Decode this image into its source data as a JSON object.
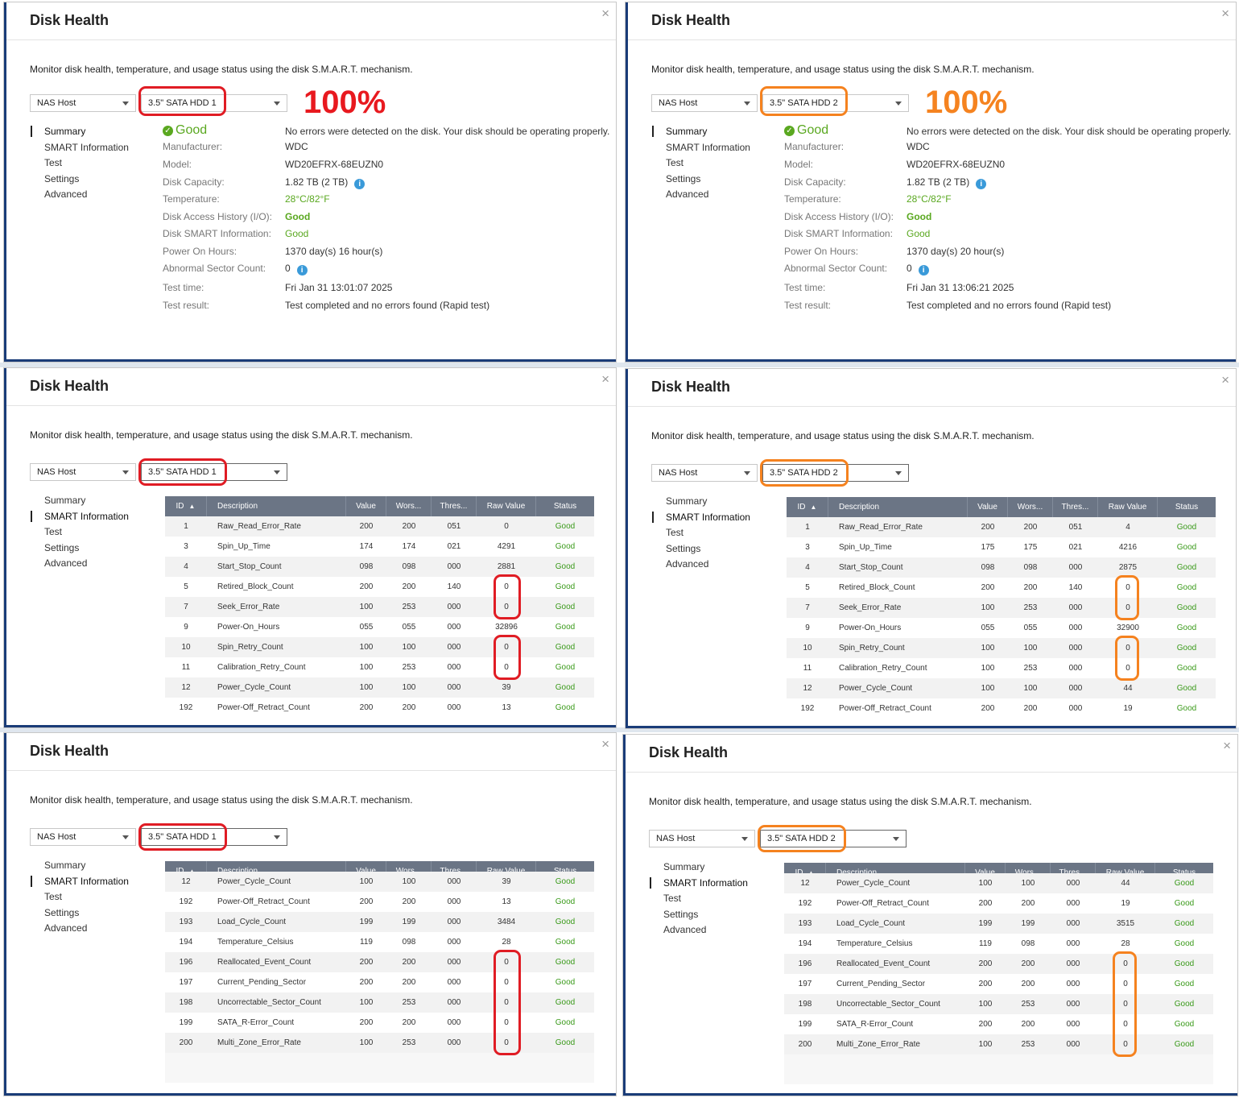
{
  "dialog_title": "Disk Health",
  "close_glyph": "×",
  "description": "Monitor disk health, temperature, and usage status using the disk S.M.A.R.T. mechanism.",
  "host_select": "NAS Host",
  "disks": {
    "hdd1": "3.5\" SATA HDD 1",
    "hdd2": "3.5\" SATA HDD 2"
  },
  "nav": [
    "Summary",
    "SMART Information",
    "Test",
    "Settings",
    "Advanced"
  ],
  "health_pct": "100%",
  "annotation_colors": {
    "hdd1": "#e01c24",
    "hdd2": "#f5821f"
  },
  "summary_labels": {
    "status": "Good",
    "no_errors": "No errors were detected on the disk. Your disk should be operating properly.",
    "manufacturer": "Manufacturer:",
    "model": "Model:",
    "capacity": "Disk Capacity:",
    "temperature": "Temperature:",
    "access_history": "Disk Access History (I/O):",
    "smart_info": "Disk SMART Information:",
    "power_on": "Power On Hours:",
    "abnormal": "Abnormal Sector Count:",
    "test_time": "Test time:",
    "test_result": "Test result:"
  },
  "summary": {
    "hdd1": {
      "manufacturer": "WDC",
      "model": "WD20EFRX-68EUZN0",
      "capacity": "1.82 TB (2 TB)",
      "temperature": "28°C/82°F",
      "access_history": "Good",
      "smart_info": "Good",
      "power_on": "1370 day(s) 16 hour(s)",
      "abnormal": "0",
      "test_time": "Fri Jan 31 13:01:07 2025",
      "test_result": "Test completed and no errors found (Rapid test)"
    },
    "hdd2": {
      "manufacturer": "WDC",
      "model": "WD20EFRX-68EUZN0",
      "capacity": "1.82 TB (2 TB)",
      "temperature": "28°C/82°F",
      "access_history": "Good",
      "smart_info": "Good",
      "power_on": "1370 day(s) 20 hour(s)",
      "abnormal": "0",
      "test_time": "Fri Jan 31 13:06:21 2025",
      "test_result": "Test completed and no errors found (Rapid test)"
    }
  },
  "table_headers": {
    "id": "ID",
    "sort": "▲",
    "desc": "Description",
    "value": "Value",
    "worst": "Wors...",
    "thresh": "Thres...",
    "raw": "Raw Value",
    "status": "Status"
  },
  "smart_status": "Good",
  "smart": {
    "hdd1_page1": [
      [
        "1",
        "Raw_Read_Error_Rate",
        "200",
        "200",
        "051",
        "0"
      ],
      [
        "3",
        "Spin_Up_Time",
        "174",
        "174",
        "021",
        "4291"
      ],
      [
        "4",
        "Start_Stop_Count",
        "098",
        "098",
        "000",
        "2881"
      ],
      [
        "5",
        "Retired_Block_Count",
        "200",
        "200",
        "140",
        "0"
      ],
      [
        "7",
        "Seek_Error_Rate",
        "100",
        "253",
        "000",
        "0"
      ],
      [
        "9",
        "Power-On_Hours",
        "055",
        "055",
        "000",
        "32896"
      ],
      [
        "10",
        "Spin_Retry_Count",
        "100",
        "100",
        "000",
        "0"
      ],
      [
        "11",
        "Calibration_Retry_Count",
        "100",
        "253",
        "000",
        "0"
      ],
      [
        "12",
        "Power_Cycle_Count",
        "100",
        "100",
        "000",
        "39"
      ],
      [
        "192",
        "Power-Off_Retract_Count",
        "200",
        "200",
        "000",
        "13"
      ]
    ],
    "hdd2_page1": [
      [
        "1",
        "Raw_Read_Error_Rate",
        "200",
        "200",
        "051",
        "4"
      ],
      [
        "3",
        "Spin_Up_Time",
        "175",
        "175",
        "021",
        "4216"
      ],
      [
        "4",
        "Start_Stop_Count",
        "098",
        "098",
        "000",
        "2875"
      ],
      [
        "5",
        "Retired_Block_Count",
        "200",
        "200",
        "140",
        "0"
      ],
      [
        "7",
        "Seek_Error_Rate",
        "100",
        "253",
        "000",
        "0"
      ],
      [
        "9",
        "Power-On_Hours",
        "055",
        "055",
        "000",
        "32900"
      ],
      [
        "10",
        "Spin_Retry_Count",
        "100",
        "100",
        "000",
        "0"
      ],
      [
        "11",
        "Calibration_Retry_Count",
        "100",
        "253",
        "000",
        "0"
      ],
      [
        "12",
        "Power_Cycle_Count",
        "100",
        "100",
        "000",
        "44"
      ],
      [
        "192",
        "Power-Off_Retract_Count",
        "200",
        "200",
        "000",
        "19"
      ]
    ],
    "hdd1_page2": [
      [
        "12",
        "Power_Cycle_Count",
        "100",
        "100",
        "000",
        "39"
      ],
      [
        "192",
        "Power-Off_Retract_Count",
        "200",
        "200",
        "000",
        "13"
      ],
      [
        "193",
        "Load_Cycle_Count",
        "199",
        "199",
        "000",
        "3484"
      ],
      [
        "194",
        "Temperature_Celsius",
        "119",
        "098",
        "000",
        "28"
      ],
      [
        "196",
        "Reallocated_Event_Count",
        "200",
        "200",
        "000",
        "0"
      ],
      [
        "197",
        "Current_Pending_Sector",
        "200",
        "200",
        "000",
        "0"
      ],
      [
        "198",
        "Uncorrectable_Sector_Count",
        "100",
        "253",
        "000",
        "0"
      ],
      [
        "199",
        "SATA_R-Error_Count",
        "200",
        "200",
        "000",
        "0"
      ],
      [
        "200",
        "Multi_Zone_Error_Rate",
        "100",
        "253",
        "000",
        "0"
      ]
    ],
    "hdd2_page2": [
      [
        "12",
        "Power_Cycle_Count",
        "100",
        "100",
        "000",
        "44"
      ],
      [
        "192",
        "Power-Off_Retract_Count",
        "200",
        "200",
        "000",
        "19"
      ],
      [
        "193",
        "Load_Cycle_Count",
        "199",
        "199",
        "000",
        "3515"
      ],
      [
        "194",
        "Temperature_Celsius",
        "119",
        "098",
        "000",
        "28"
      ],
      [
        "196",
        "Reallocated_Event_Count",
        "200",
        "200",
        "000",
        "0"
      ],
      [
        "197",
        "Current_Pending_Sector",
        "200",
        "200",
        "000",
        "0"
      ],
      [
        "198",
        "Uncorrectable_Sector_Count",
        "100",
        "253",
        "000",
        "0"
      ],
      [
        "199",
        "SATA_R-Error_Count",
        "200",
        "200",
        "000",
        "0"
      ],
      [
        "200",
        "Multi_Zone_Error_Rate",
        "100",
        "253",
        "000",
        "0"
      ]
    ]
  }
}
